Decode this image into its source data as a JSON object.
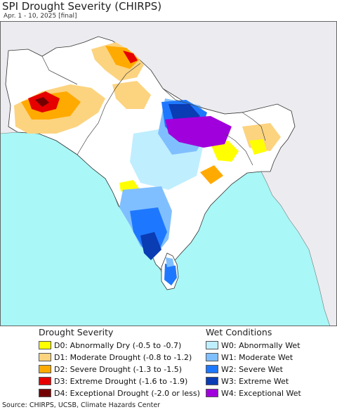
{
  "title": "SPI Drought Severity (CHIRPS)",
  "subtitle": "Apr. 1 - 10, 2025 [final]",
  "colors": {
    "ocean": "#a9f7f7",
    "land": "#ececf0",
    "region_land": "#ffffff",
    "border": "#444444"
  },
  "legend": {
    "drought_heading": "Drought Severity",
    "wet_heading": "Wet Conditions",
    "drought_items": [
      {
        "code": "D0",
        "label": "D0: Abnormally Dry (-0.5 to -0.7)",
        "color": "#ffff00"
      },
      {
        "code": "D1",
        "label": "D1: Moderate Drought (-0.8 to -1.2)",
        "color": "#fcd37f"
      },
      {
        "code": "D2",
        "label": "D2: Severe Drought (-1.3 to -1.5)",
        "color": "#ffaa00"
      },
      {
        "code": "D3",
        "label": "D3: Extreme Drought (-1.6 to -1.9)",
        "color": "#e60000"
      },
      {
        "code": "D4",
        "label": "D4: Exceptional Drought (-2.0 or less)",
        "color": "#730000"
      }
    ],
    "wet_items": [
      {
        "code": "W0",
        "label": "W0: Abnormally Wet",
        "color": "#bfeeff"
      },
      {
        "code": "W1",
        "label": "W1: Moderate Wet",
        "color": "#80bfff"
      },
      {
        "code": "W2",
        "label": "W2: Severe Wet",
        "color": "#1e78ff"
      },
      {
        "code": "W3",
        "label": "W3: Extreme Wet",
        "color": "#0a3cb4"
      },
      {
        "code": "W4",
        "label": "W4: Exceptional Wet",
        "color": "#a000dc"
      }
    ]
  },
  "source": "Source: CHIRPS, UCSB, Climate Hazards Center"
}
